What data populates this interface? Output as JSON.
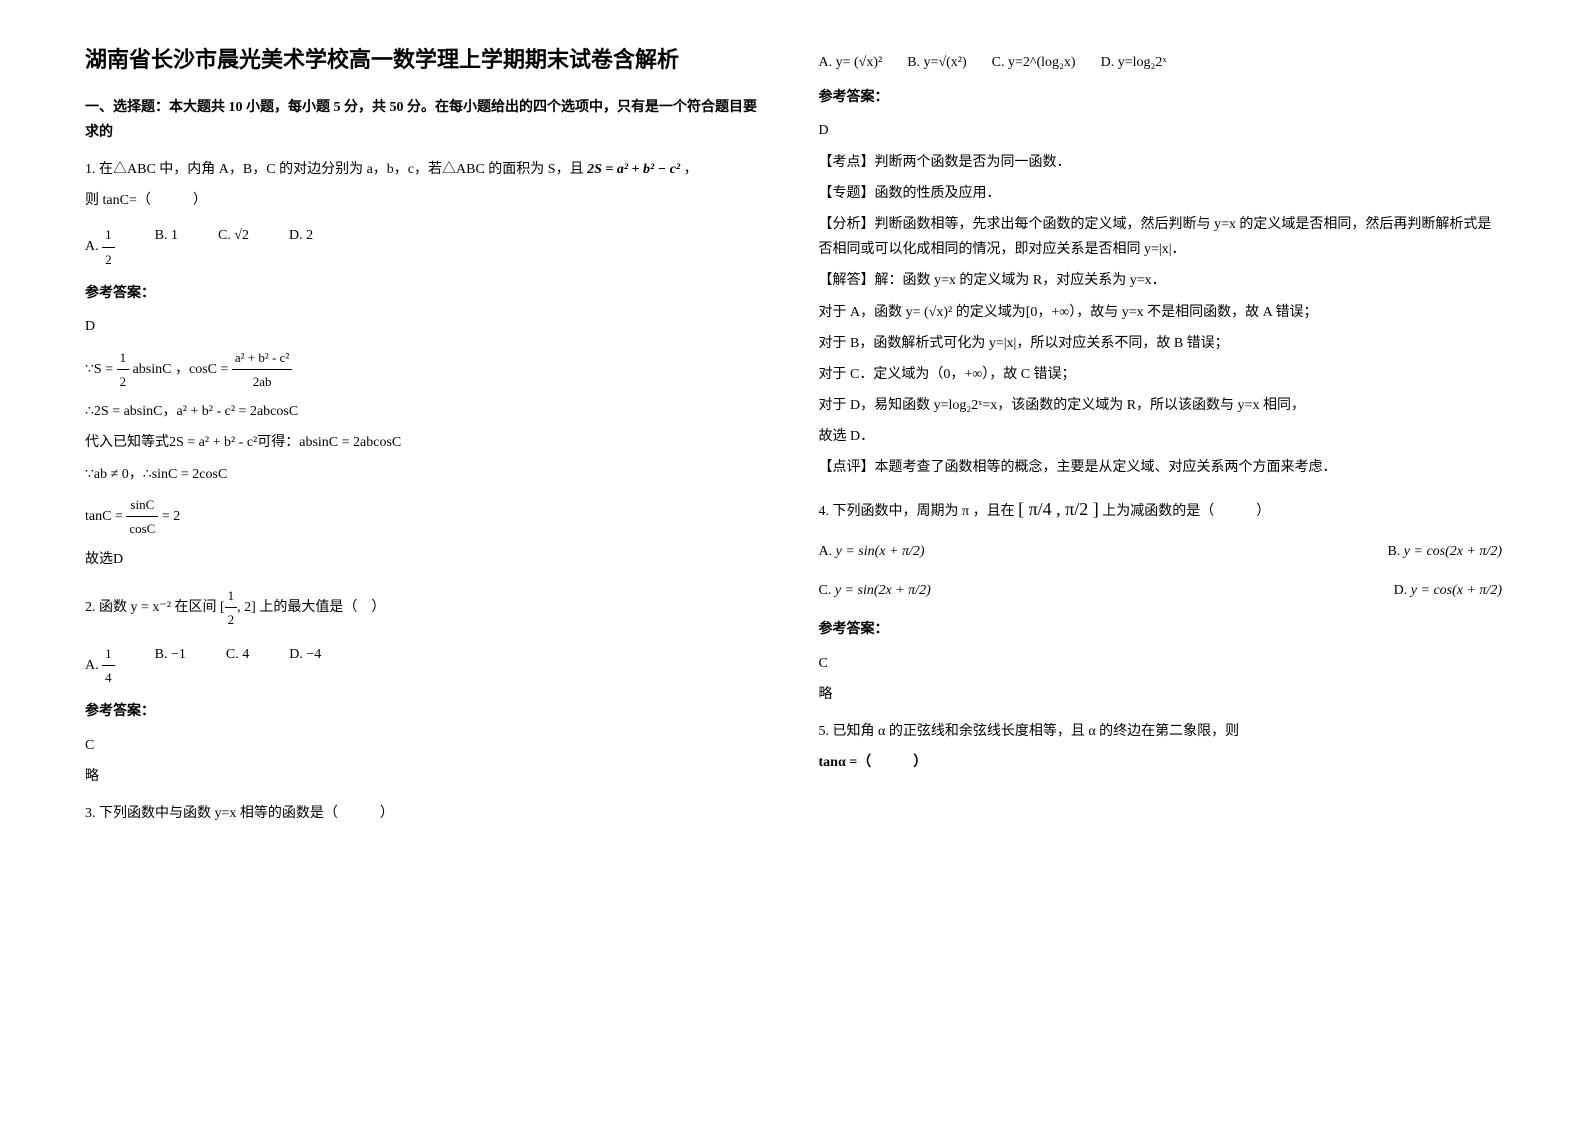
{
  "title": "湖南省长沙市晨光美术学校高一数学理上学期期末试卷含解析",
  "section1_title": "一、选择题：本大题共 10 小题，每小题 5 分，共 50 分。在每小题给出的四个选项中，只有是一个符合题目要求的",
  "q1": {
    "stem_part1": "1. 在△ABC 中，内角 A，B，C 的对边分别为 a，b，c，若△ABC 的面积为 S，且",
    "stem_math": "2S = a² + b² − c²",
    "stem_part2": "，",
    "stem2": "则 tanC=（　　　）",
    "optA": "A.",
    "optA_math": "1",
    "optA_math2": "2",
    "optB": "B. 1",
    "optC": "C. √2",
    "optD": "D. 2",
    "ans_label": "参考答案：",
    "ans": "D",
    "sol1": "∵S = ",
    "sol1b": "absinC",
    "sol1c": "，cosC = ",
    "sol1c_num": "a² + b² - c²",
    "sol1c_den": "2ab",
    "sol2": "∴2S = absinC，a² + b² - c² = 2abcosC",
    "sol3": "代入已知等式2S = a² + b² - c²可得：absinC = 2abcosC",
    "sol4": "∵ab ≠ 0，∴sinC = 2cosC",
    "sol5": "tanC = ",
    "sol5_num": "sinC",
    "sol5_den": "cosC",
    "sol5_eq": " = 2",
    "sol6": "故选D"
  },
  "q2": {
    "stem": "2. 函数 y = x⁻² 在区间",
    "range_num": "1",
    "range_den": "2",
    "range_end": ", 2]",
    "stem2": " 上的最大值是（　）",
    "optA": "A. ",
    "optA_num": "1",
    "optA_den": "4",
    "optB": "B. −1",
    "optC": "C. 4",
    "optD": "D. −4",
    "ans_label": "参考答案：",
    "ans": "C",
    "sol": "略"
  },
  "q3": {
    "stem": "3. 下列函数中与函数 y=x 相等的函数是（　　　）",
    "optA": "A. y= (√x)²",
    "optB": "B. y=√(x²)",
    "optC": "C. y=2^(log₂x)",
    "optD": "D. y=log₂2ˣ",
    "ans_label": "参考答案：",
    "ans": "D",
    "point": "【考点】判断两个函数是否为同一函数．",
    "topic": "【专题】函数的性质及应用．",
    "analysis": "【分析】判断函数相等，先求出每个函数的定义域，然后判断与 y=x 的定义域是否相同，然后再判断解析式是否相同或可以化成相同的情况，即对应关系是否相同 y=|x|．",
    "solve": "【解答】解：函数 y=x 的定义域为 R，对应关系为 y=x．",
    "solveA": "对于 A，函数 y= (√x)² 的定义域为[0，+∞），故与 y=x 不是相同函数，故 A 错误；",
    "solveB": "对于 B，函数解析式可化为 y=|x|，所以对应关系不同，故 B 错误；",
    "solveC": "对于 C．定义域为（0，+∞），故 C 错误；",
    "solveD": "对于 D，易知函数 y=log₂2ˣ=x，该函数的定义域为 R，所以该函数与 y=x 相同，",
    "solveD2": "故选 D．",
    "comment": "【点评】本题考查了函数相等的概念，主要是从定义域、对应关系两个方面来考虑．"
  },
  "q4": {
    "stem": "4. 下列函数中，周期为 π ，且在",
    "range": "[ π/4 , π/2 ]",
    "stem2": " 上为减函数的是（　　　）",
    "optA": "A.",
    "optA_math": "y = sin(x + π/2)",
    "optB": "B.",
    "optB_math": "y = cos(2x + π/2)",
    "optC": "C.",
    "optC_math": "y = sin(2x + π/2)",
    "optD": "D.",
    "optD_math": "y = cos(x + π/2)",
    "ans_label": "参考答案：",
    "ans": "C",
    "sol": "略"
  },
  "q5": {
    "stem": "5. 已知角 α 的正弦线和余弦线长度相等，且 α 的终边在第二象限，则",
    "stem2": "tanα =（　　　）"
  }
}
